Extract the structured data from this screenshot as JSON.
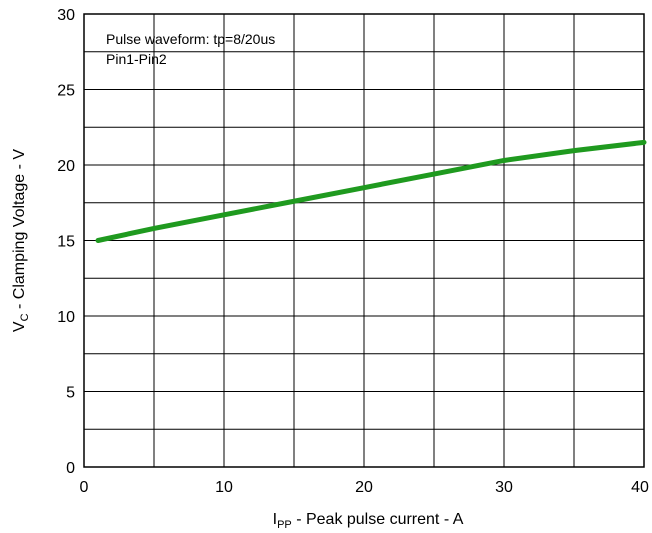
{
  "chart_data": {
    "type": "line",
    "title": "",
    "annotations": [
      "Pulse waveform: tp=8/20us",
      "Pin1-Pin2"
    ],
    "xlabel": {
      "main": "I",
      "sub": "PP",
      "rest": " - Peak pulse current - A"
    },
    "ylabel": {
      "main": "V",
      "sub": "C",
      "rest": " - Clamping Voltage - V"
    },
    "xlim": [
      0,
      40
    ],
    "ylim": [
      0,
      30
    ],
    "x_ticks": [
      0,
      10,
      20,
      30,
      40
    ],
    "y_ticks": [
      0,
      5,
      10,
      15,
      20,
      25,
      30
    ],
    "x_tick_labels": [
      "0",
      "10",
      "20",
      "30",
      "40"
    ],
    "y_tick_labels": [
      "0",
      "5",
      "10",
      "15",
      "20",
      "25",
      "30"
    ],
    "grid": true,
    "series": [
      {
        "color": "#1f9a1f",
        "x": [
          1,
          5,
          10,
          15,
          20,
          25,
          30,
          35,
          40
        ],
        "y": [
          15.0,
          15.8,
          16.7,
          17.6,
          18.5,
          19.4,
          20.3,
          20.95,
          21.5
        ]
      }
    ]
  }
}
